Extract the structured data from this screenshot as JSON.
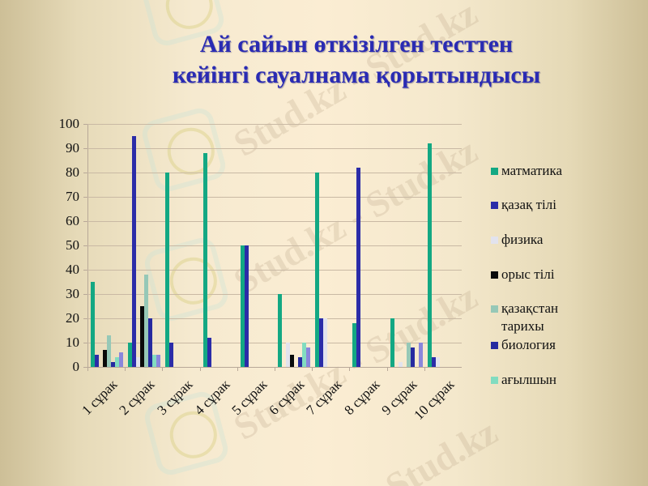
{
  "slide": {
    "title_line1": "Ай сайын өткізілген тесттен",
    "title_line2": "кейінгі сауалнама қорытындысы",
    "watermark_text": "Stud.kz",
    "watermark_text_alt": "Stud.kz - Stud.kz"
  },
  "chart_data": {
    "type": "bar",
    "title": "Ай сайын өткізілген тесттен кейінгі сауалнама қорытындысы",
    "xlabel": "",
    "ylabel": "",
    "ylim": [
      0,
      100
    ],
    "yticks": [
      "0",
      "10",
      "20",
      "30",
      "40",
      "50",
      "60",
      "70",
      "80",
      "90",
      "100"
    ],
    "grid": true,
    "legend_position": "right",
    "categories": [
      "1 сұрак",
      "2 сұрак",
      "3 сұрак",
      "4 сұрак",
      "5 сұрак",
      "6 сұрак",
      "7 сұрак",
      "8 сұрак",
      "9 сұрак",
      "10 сұрак"
    ],
    "series": [
      {
        "name": "матматика",
        "color": "#13a883",
        "values": [
          35,
          10,
          80,
          88,
          50,
          30,
          80,
          18,
          20,
          92
        ]
      },
      {
        "name": "қазақ тілі",
        "color": "#2b2ca8",
        "values": [
          5,
          95,
          10,
          12,
          50,
          0,
          20,
          82,
          0,
          4
        ]
      },
      {
        "name": "физика",
        "color": "#e2e3ee",
        "values": [
          0,
          4,
          0,
          0,
          0,
          10,
          20,
          0,
          2,
          4
        ]
      },
      {
        "name": "орыс тілі",
        "color": "#0a0a0a",
        "values": [
          7,
          25,
          0,
          0,
          0,
          5,
          0,
          0,
          0,
          0
        ]
      },
      {
        "name": "қазақстан тарихы",
        "color": "#96c8b7",
        "values": [
          13,
          38,
          0,
          0,
          0,
          0,
          0,
          0,
          10,
          0
        ]
      },
      {
        "name": "биология",
        "color": "#262aa0",
        "values": [
          2,
          20,
          0,
          0,
          0,
          4,
          0,
          0,
          8,
          0
        ]
      },
      {
        "name": "ағылшын",
        "color": "#82dcc0",
        "values": [
          4,
          5,
          0,
          0,
          0,
          10,
          0,
          0,
          0,
          0
        ]
      },
      {
        "name": "",
        "color": "#8a86dc",
        "values": [
          6,
          5,
          0,
          0,
          0,
          8,
          0,
          0,
          10,
          0
        ]
      }
    ]
  },
  "legend": {
    "items": [
      {
        "label": "матматика",
        "color": "#13a883"
      },
      {
        "label": "қазақ тілі",
        "color": "#2b2ca8"
      },
      {
        "label": "физика",
        "color": "#e2e3ee"
      },
      {
        "label": "орыс тілі",
        "color": "#0a0a0a"
      },
      {
        "label": "қазақстан тарихы",
        "color": "#96c8b7"
      },
      {
        "label": "биология",
        "color": "#262aa0"
      },
      {
        "label": "ағылшын",
        "color": "#82dcc0"
      }
    ]
  }
}
